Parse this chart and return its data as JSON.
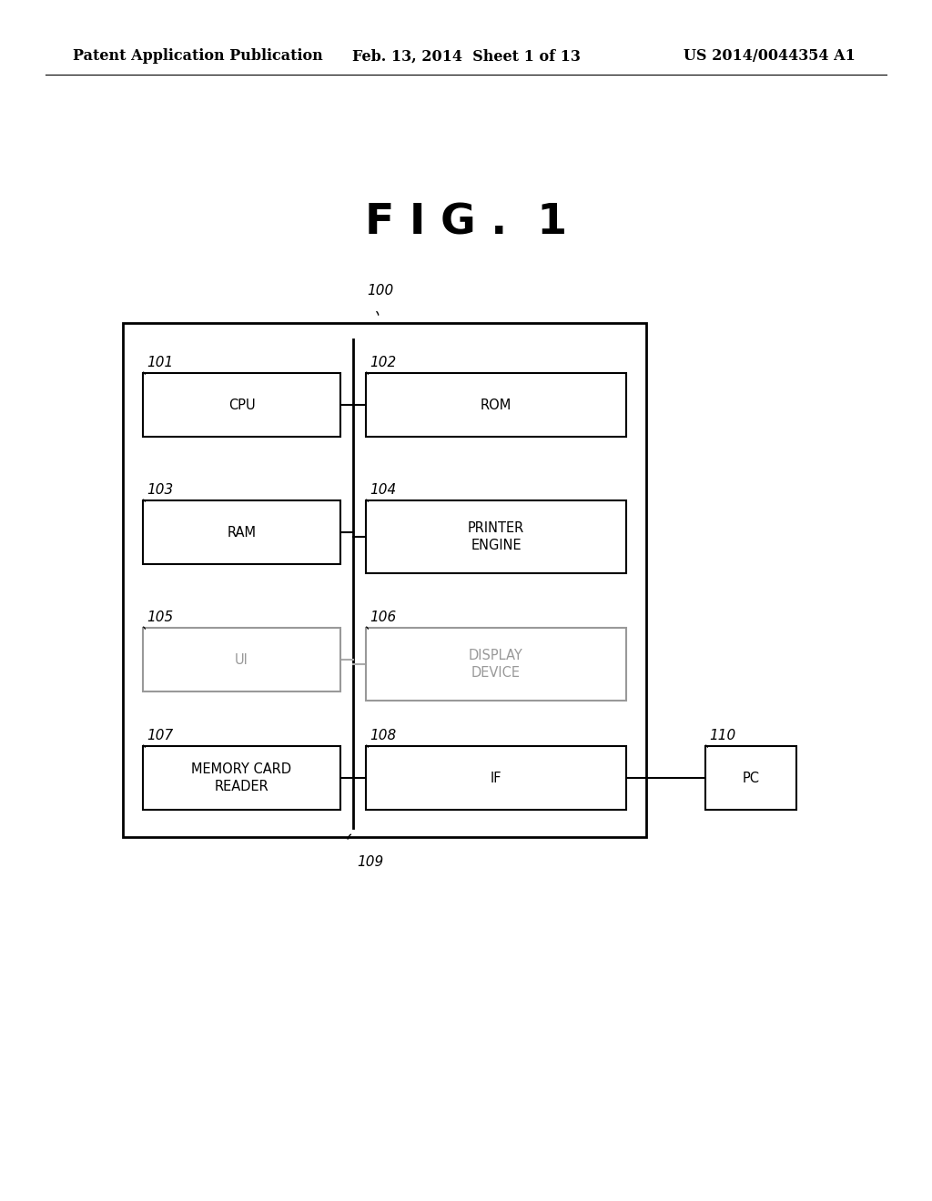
{
  "bg_color": "#ffffff",
  "fig_title": "F I G .  1",
  "header_left": "Patent Application Publication",
  "header_mid": "Feb. 13, 2014  Sheet 1 of 13",
  "header_right": "US 2014/0044354 A1",
  "outer_box_label": "100",
  "bus_label": "109",
  "boxes": [
    {
      "label": "CPU",
      "num": "101",
      "col": "left",
      "row": 0,
      "gray": false
    },
    {
      "label": "ROM",
      "num": "102",
      "col": "right",
      "row": 0,
      "gray": false
    },
    {
      "label": "RAM",
      "num": "103",
      "col": "left",
      "row": 1,
      "gray": false
    },
    {
      "label": "PRINTER\nENGINE",
      "num": "104",
      "col": "right",
      "row": 1,
      "gray": false
    },
    {
      "label": "UI",
      "num": "105",
      "col": "left",
      "row": 2,
      "gray": true
    },
    {
      "label": "DISPLAY\nDEVICE",
      "num": "106",
      "col": "right",
      "row": 2,
      "gray": true
    },
    {
      "label": "MEMORY CARD\nREADER",
      "num": "107",
      "col": "left",
      "row": 3,
      "gray": false
    },
    {
      "label": "IF",
      "num": "108",
      "col": "right",
      "row": 3,
      "gray": false
    }
  ],
  "pc_box": {
    "label": "PC",
    "num": "110"
  }
}
